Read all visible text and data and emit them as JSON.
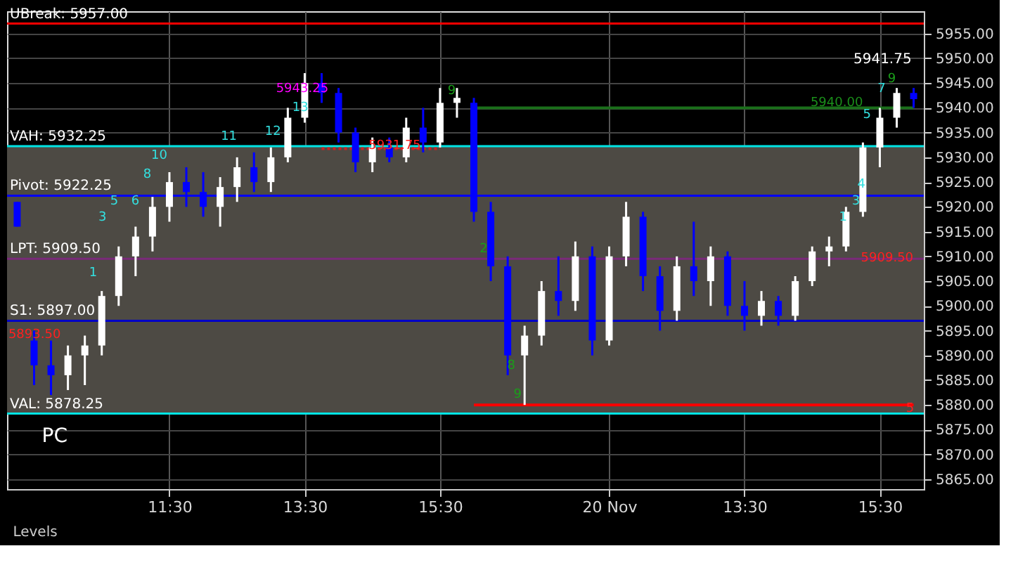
{
  "chart_data": {
    "type": "candlestick",
    "categories": [
      null,
      null,
      null,
      null,
      null,
      null,
      null,
      null,
      null,
      "11:30",
      null,
      null,
      null,
      null,
      null,
      null,
      null,
      "13:30",
      null,
      null,
      null,
      null,
      null,
      null,
      null,
      "15:30",
      null,
      null,
      null,
      null,
      null,
      null,
      null,
      null,
      null,
      "20 Nov",
      null,
      null,
      null,
      null,
      null,
      null,
      null,
      "13:30",
      null,
      null,
      null,
      null,
      null,
      null,
      null,
      "15:30",
      null,
      null
    ],
    "ohlc": [
      [
        5921,
        5921,
        5916,
        5916
      ],
      [
        5893,
        5895,
        5884,
        5888
      ],
      [
        5888,
        5893,
        5882,
        5886
      ],
      [
        5886,
        5892,
        5883,
        5890
      ],
      [
        5890,
        5894,
        5884,
        5892
      ],
      [
        5892,
        5903,
        5890,
        5902
      ],
      [
        5902,
        5912,
        5900,
        5910
      ],
      [
        5910,
        5916,
        5906,
        5914
      ],
      [
        5914,
        5922,
        5911,
        5920
      ],
      [
        5920,
        5927,
        5917,
        5925
      ],
      [
        5925,
        5928,
        5920,
        5923
      ],
      [
        5923,
        5927,
        5918,
        5920
      ],
      [
        5920,
        5926,
        5916,
        5924
      ],
      [
        5924,
        5930,
        5921,
        5928
      ],
      [
        5928,
        5931,
        5923,
        5925
      ],
      [
        5925,
        5932,
        5923,
        5930
      ],
      [
        5930,
        5940,
        5929,
        5938
      ],
      [
        5938,
        5947,
        5937,
        5945
      ],
      [
        5945,
        5947,
        5941,
        5943
      ],
      [
        5943,
        5944,
        5933,
        5935
      ],
      [
        5935,
        5936,
        5927,
        5929
      ],
      [
        5929,
        5934,
        5927,
        5932
      ],
      [
        5932,
        5934,
        5929,
        5930
      ],
      [
        5930,
        5938,
        5929,
        5936
      ],
      [
        5936,
        5940,
        5931,
        5933
      ],
      [
        5933,
        5944,
        5932,
        5941
      ],
      [
        5941,
        5944,
        5938,
        5942
      ],
      [
        5941,
        5942,
        5917,
        5919
      ],
      [
        5919,
        5921,
        5905,
        5908
      ],
      [
        5908,
        5910,
        5886,
        5890
      ],
      [
        5890,
        5896,
        5880,
        5894
      ],
      [
        5894,
        5905,
        5892,
        5903
      ],
      [
        5903,
        5910,
        5898,
        5901
      ],
      [
        5901,
        5913,
        5899,
        5910
      ],
      [
        5910,
        5912,
        5890,
        5893
      ],
      [
        5893,
        5912,
        5892,
        5910
      ],
      [
        5910,
        5921,
        5908,
        5918
      ],
      [
        5918,
        5919,
        5903,
        5906
      ],
      [
        5906,
        5908,
        5895,
        5899
      ],
      [
        5899,
        5910,
        5897,
        5908
      ],
      [
        5908,
        5917,
        5902,
        5905
      ],
      [
        5905,
        5912,
        5900,
        5910
      ],
      [
        5910,
        5911,
        5898,
        5900
      ],
      [
        5900,
        5905,
        5895,
        5898
      ],
      [
        5898,
        5903,
        5896,
        5901
      ],
      [
        5901,
        5902,
        5896,
        5898
      ],
      [
        5898,
        5906,
        5897,
        5905
      ],
      [
        5905,
        5912,
        5904,
        5911
      ],
      [
        5911,
        5914,
        5908,
        5912
      ],
      [
        5912,
        5920,
        5911,
        5919
      ],
      [
        5919,
        5933,
        5918,
        5932
      ],
      [
        5932,
        5940,
        5928,
        5938
      ],
      [
        5938,
        5944,
        5936,
        5943
      ],
      [
        5943,
        5944,
        5940,
        5941.75
      ]
    ],
    "colors": [
      "#0000ff",
      "#0000ff",
      "#0000ff",
      "#ffffff",
      "#ffffff",
      "#ffffff",
      "#ffffff",
      "#ffffff",
      "#ffffff",
      "#ffffff",
      "#0000ff",
      "#0000ff",
      "#ffffff",
      "#ffffff",
      "#0000ff",
      "#ffffff",
      "#ffffff",
      "#ffffff",
      "#0000ff",
      "#0000ff",
      "#0000ff",
      "#ffffff",
      "#0000ff",
      "#ffffff",
      "#0000ff",
      "#ffffff",
      "#ffffff",
      "#0000ff",
      "#0000ff",
      "#0000ff",
      "#ffffff",
      "#ffffff",
      "#0000ff",
      "#ffffff",
      "#0000ff",
      "#ffffff",
      "#ffffff",
      "#0000ff",
      "#0000ff",
      "#ffffff",
      "#0000ff",
      "#ffffff",
      "#0000ff",
      "#0000ff",
      "#ffffff",
      "#0000ff",
      "#ffffff",
      "#ffffff",
      "#ffffff",
      "#ffffff",
      "#ffffff",
      "#ffffff",
      "#ffffff",
      "#0000ff"
    ],
    "series": [
      {
        "type": "line",
        "color": "#ff0000",
        "values": [
          null,
          null,
          null,
          null,
          null,
          null,
          null,
          null,
          null,
          null,
          null,
          null,
          null,
          null,
          null,
          null,
          null,
          null,
          null,
          null,
          null,
          null,
          null,
          null,
          null,
          null,
          null,
          5880,
          5880,
          5880,
          5880,
          5880,
          5880,
          5880,
          5880,
          5880,
          5880,
          5880,
          5880,
          5880,
          5880,
          5880,
          5880,
          5880,
          5880,
          5880,
          5880,
          5880,
          5880,
          5880,
          5880,
          5880,
          5880,
          5880
        ]
      },
      {
        "type": "line",
        "color": "#1a6e1a",
        "values": [
          null,
          null,
          null,
          null,
          null,
          null,
          null,
          null,
          null,
          null,
          null,
          null,
          null,
          null,
          null,
          null,
          null,
          null,
          null,
          null,
          null,
          null,
          null,
          null,
          null,
          null,
          null,
          5940,
          5940,
          5940,
          5940,
          5940,
          5940,
          5940,
          5940,
          5940,
          5940,
          5940,
          5940,
          5940,
          5940,
          5940,
          5940,
          5940,
          5940,
          5940,
          5940,
          5940,
          5940,
          5940,
          5940,
          5940,
          5940,
          5940
        ]
      },
      {
        "type": "line",
        "color": "#cc2222",
        "line_style": "dotted",
        "values": [
          null,
          null,
          null,
          null,
          null,
          null,
          null,
          null,
          null,
          null,
          null,
          null,
          null,
          null,
          null,
          null,
          null,
          null,
          5931.75,
          5931.75,
          5931.75,
          5931.75,
          5931.75,
          5931.75,
          5931.75,
          5931.75,
          null,
          null,
          null,
          null,
          null,
          null,
          null,
          null,
          null,
          null,
          null,
          null,
          null,
          null,
          null,
          null,
          null,
          null,
          null,
          null,
          null,
          null,
          null,
          null,
          null,
          null,
          null,
          null
        ]
      }
    ],
    "ylim": [
      5863,
      5959.5
    ],
    "yticks": [
      {
        "value": 5865,
        "label": "5865.00"
      },
      {
        "value": 5870,
        "label": "5870.00"
      },
      {
        "value": 5875,
        "label": "5875.00"
      },
      {
        "value": 5880,
        "label": "5880.00"
      },
      {
        "value": 5885,
        "label": "5885.00"
      },
      {
        "value": 5890,
        "label": "5890.00"
      },
      {
        "value": 5895,
        "label": "5895.00"
      },
      {
        "value": 5900,
        "label": "5900.00"
      },
      {
        "value": 5905,
        "label": "5905.00"
      },
      {
        "value": 5910,
        "label": "5910.00"
      },
      {
        "value": 5915,
        "label": "5915.00"
      },
      {
        "value": 5920,
        "label": "5920.00"
      },
      {
        "value": 5925,
        "label": "5925.00"
      },
      {
        "value": 5930,
        "label": "5930.00"
      },
      {
        "value": 5935,
        "label": "5935.00"
      },
      {
        "value": 5940,
        "label": "5940.00"
      },
      {
        "value": 5945,
        "label": "5945.00"
      },
      {
        "value": 5950,
        "label": "5950.00"
      },
      {
        "value": 5955,
        "label": "5955.00"
      }
    ],
    "grid": true,
    "bands": [
      {
        "axis": "y",
        "from": 5878.25,
        "to": 5932.25,
        "color": "#4d4a44"
      }
    ],
    "ref_lines": [
      {
        "axis": "y",
        "value": 5957,
        "label": "UBreak: 5957.00",
        "color": "#ff0000"
      },
      {
        "axis": "y",
        "value": 5932.25,
        "label": "VAH: 5932.25",
        "color": "#00e5e5"
      },
      {
        "axis": "y",
        "value": 5922.25,
        "label": "Pivot: 5922.25",
        "color": "#0000ff"
      },
      {
        "axis": "y",
        "value": 5909.5,
        "label": "LPT: 5909.50",
        "color": "#7a2a7a"
      },
      {
        "axis": "y",
        "value": 5897,
        "label": "S1: 5897.00",
        "color": "#0000c8"
      },
      {
        "axis": "y",
        "value": 5878.25,
        "label": "VAL: 5878.25",
        "color": "#00e5e5"
      }
    ],
    "annotations": [
      "5943.25",
      "5931.75",
      "5940.00",
      "5909.50",
      "5893.50",
      "5",
      "5941.75",
      "1",
      "3",
      "5",
      "6",
      "8",
      "10",
      "11",
      "12",
      "13",
      "9",
      "2",
      "8",
      "9",
      "1",
      "3",
      "4",
      "5",
      "7",
      "9",
      "PC",
      "Levels"
    ]
  }
}
